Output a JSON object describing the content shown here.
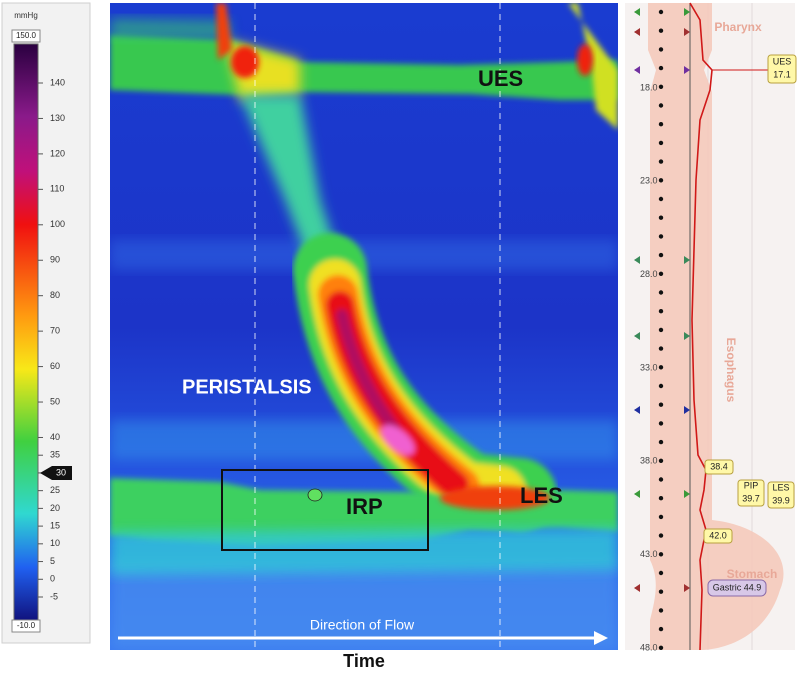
{
  "colorbar": {
    "unit": "mmHg",
    "max": "150.0",
    "min": "-10.0",
    "ticks": [
      "140",
      "130",
      "120",
      "110",
      "100",
      "90",
      "80",
      "70",
      "60",
      "50",
      "40",
      "35",
      "30",
      "25",
      "20",
      "15",
      "10",
      "5",
      "0",
      "-5"
    ],
    "marker": "30"
  },
  "topography": {
    "labels": {
      "ues": "UES",
      "peristalsis": "PERISTALSIS",
      "irp": "IRP",
      "les": "LES"
    },
    "flow": "Direction of Flow",
    "x_label": "Time"
  },
  "profile": {
    "depth_ticks": [
      "18.0",
      "23.0",
      "28.0",
      "33.0",
      "38.0",
      "43.0",
      "48.0"
    ],
    "regions": {
      "pharynx": "Pharynx",
      "esophagus": "Esophagus",
      "stomach": "Stomach"
    },
    "callouts": {
      "ues": "UES",
      "ues_value": "17.1",
      "pip": "PIP",
      "pip_value": "39.7",
      "les": "LES",
      "les_value": "39.9",
      "upper_value": "38.4",
      "lower_value": "42.0",
      "gastric": "Gastric 44.9"
    }
  }
}
